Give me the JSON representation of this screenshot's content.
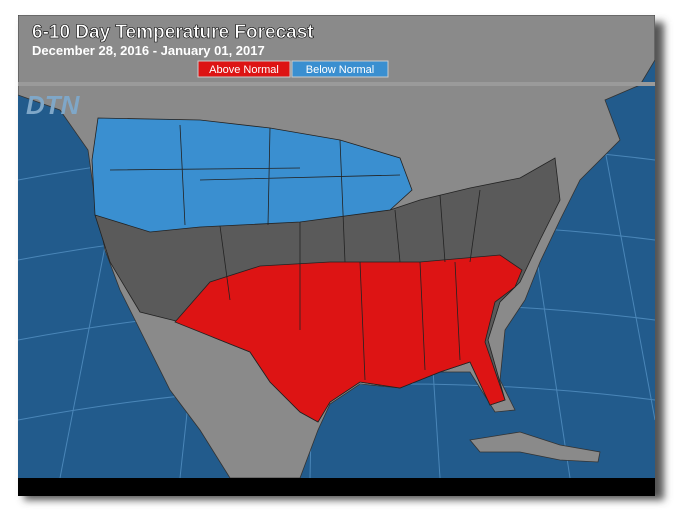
{
  "header": {
    "title": "6-10 Day Temperature Forecast",
    "subtitle": "December 28, 2016 - January 01, 2017"
  },
  "legend": {
    "items": [
      {
        "label": "Above Normal",
        "color": "#dd1414"
      },
      {
        "label": "Below Normal",
        "color": "#3a8fd0"
      }
    ]
  },
  "logo": "DTN"
}
